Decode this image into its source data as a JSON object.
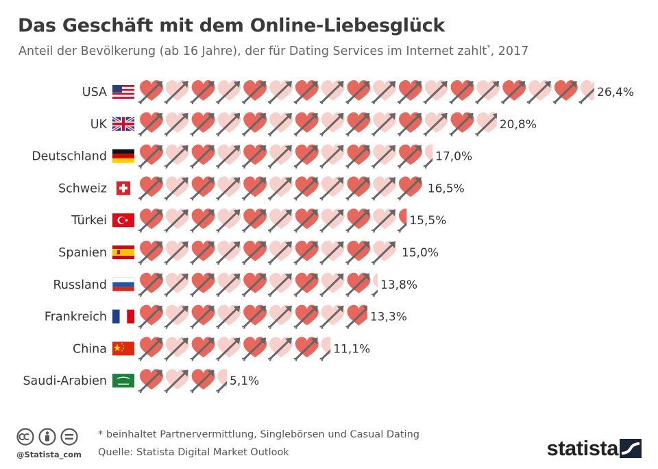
{
  "title": "Das Geschäft mit dem Online-Liebesglück",
  "subtitle": "Anteil der Bevölkerung (ab 16 Jahre), der für Dating Services im Internet zahlt",
  "subtitle_marker": "*",
  "subtitle_year": ", 2017",
  "footnote": "* beinhaltet Partnervermittlung, Singlebörsen und Casual Dating",
  "source": "Quelle: Statista Digital Market Outlook",
  "handle": "@Statista_com",
  "brand": "statista",
  "colors": {
    "heart_dark": "#e8675c",
    "heart_light": "#f7cfcb",
    "arrow": "#666666",
    "label": "#333333"
  },
  "chart_data": {
    "type": "bar",
    "mark": "heart-with-arrow pictogram, alternating dark/light, one heart per 1.5 percentage points",
    "unit": "%",
    "categories": [
      "USA",
      "UK",
      "Deutschland",
      "Schweiz",
      "Türkei",
      "Spanien",
      "Russland",
      "Frankreich",
      "China",
      "Saudi-Arabien"
    ],
    "values": [
      26.4,
      20.8,
      17.0,
      16.5,
      15.5,
      15.0,
      13.8,
      13.3,
      11.1,
      5.1
    ],
    "value_labels": [
      "26,4%",
      "20,8%",
      "17,0%",
      "16,5%",
      "15,5%",
      "15,0%",
      "13,8%",
      "13,3%",
      "11,1%",
      "5,1%"
    ],
    "flags": [
      "us-flag",
      "uk-flag",
      "germany-flag",
      "switzerland-flag",
      "turkey-flag",
      "spain-flag",
      "russia-flag",
      "france-flag",
      "china-flag",
      "saudi-arabia-flag"
    ],
    "grid": false,
    "legend": "none"
  }
}
